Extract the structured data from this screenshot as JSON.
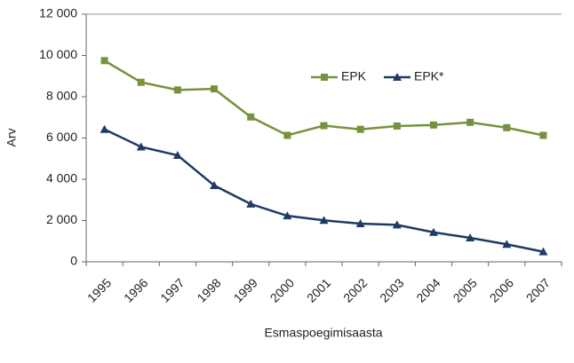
{
  "chart_data": {
    "type": "line",
    "categories": [
      "1995",
      "1996",
      "1997",
      "1998",
      "1999",
      "2000",
      "2001",
      "2002",
      "2003",
      "2004",
      "2005",
      "2006",
      "2007"
    ],
    "series": [
      {
        "name": "EPK",
        "color": "#76923c",
        "marker": "square",
        "values": [
          9750,
          8700,
          8330,
          8380,
          7020,
          6130,
          6600,
          6420,
          6580,
          6630,
          6760,
          6500,
          6130
        ]
      },
      {
        "name": "EPK*",
        "color": "#1f3b63",
        "marker": "triangle",
        "values": [
          6420,
          5570,
          5160,
          3700,
          2800,
          2230,
          2010,
          1850,
          1790,
          1430,
          1160,
          850,
          490
        ]
      }
    ],
    "ylim": [
      0,
      12000
    ],
    "yticks": [
      0,
      {
        "value": 2000,
        "label": "2 000"
      },
      {
        "value": 4000,
        "label": "4 000"
      },
      {
        "value": 6000,
        "label": "6 000"
      },
      {
        "value": 8000,
        "label": "8 000"
      },
      {
        "value": 10000,
        "label": "10 000"
      },
      {
        "value": 12000,
        "label": "12 000"
      }
    ],
    "y_label": "Arv",
    "x_label": "Esmaspoegimisaasta",
    "grid": false,
    "legend": "upper right"
  }
}
